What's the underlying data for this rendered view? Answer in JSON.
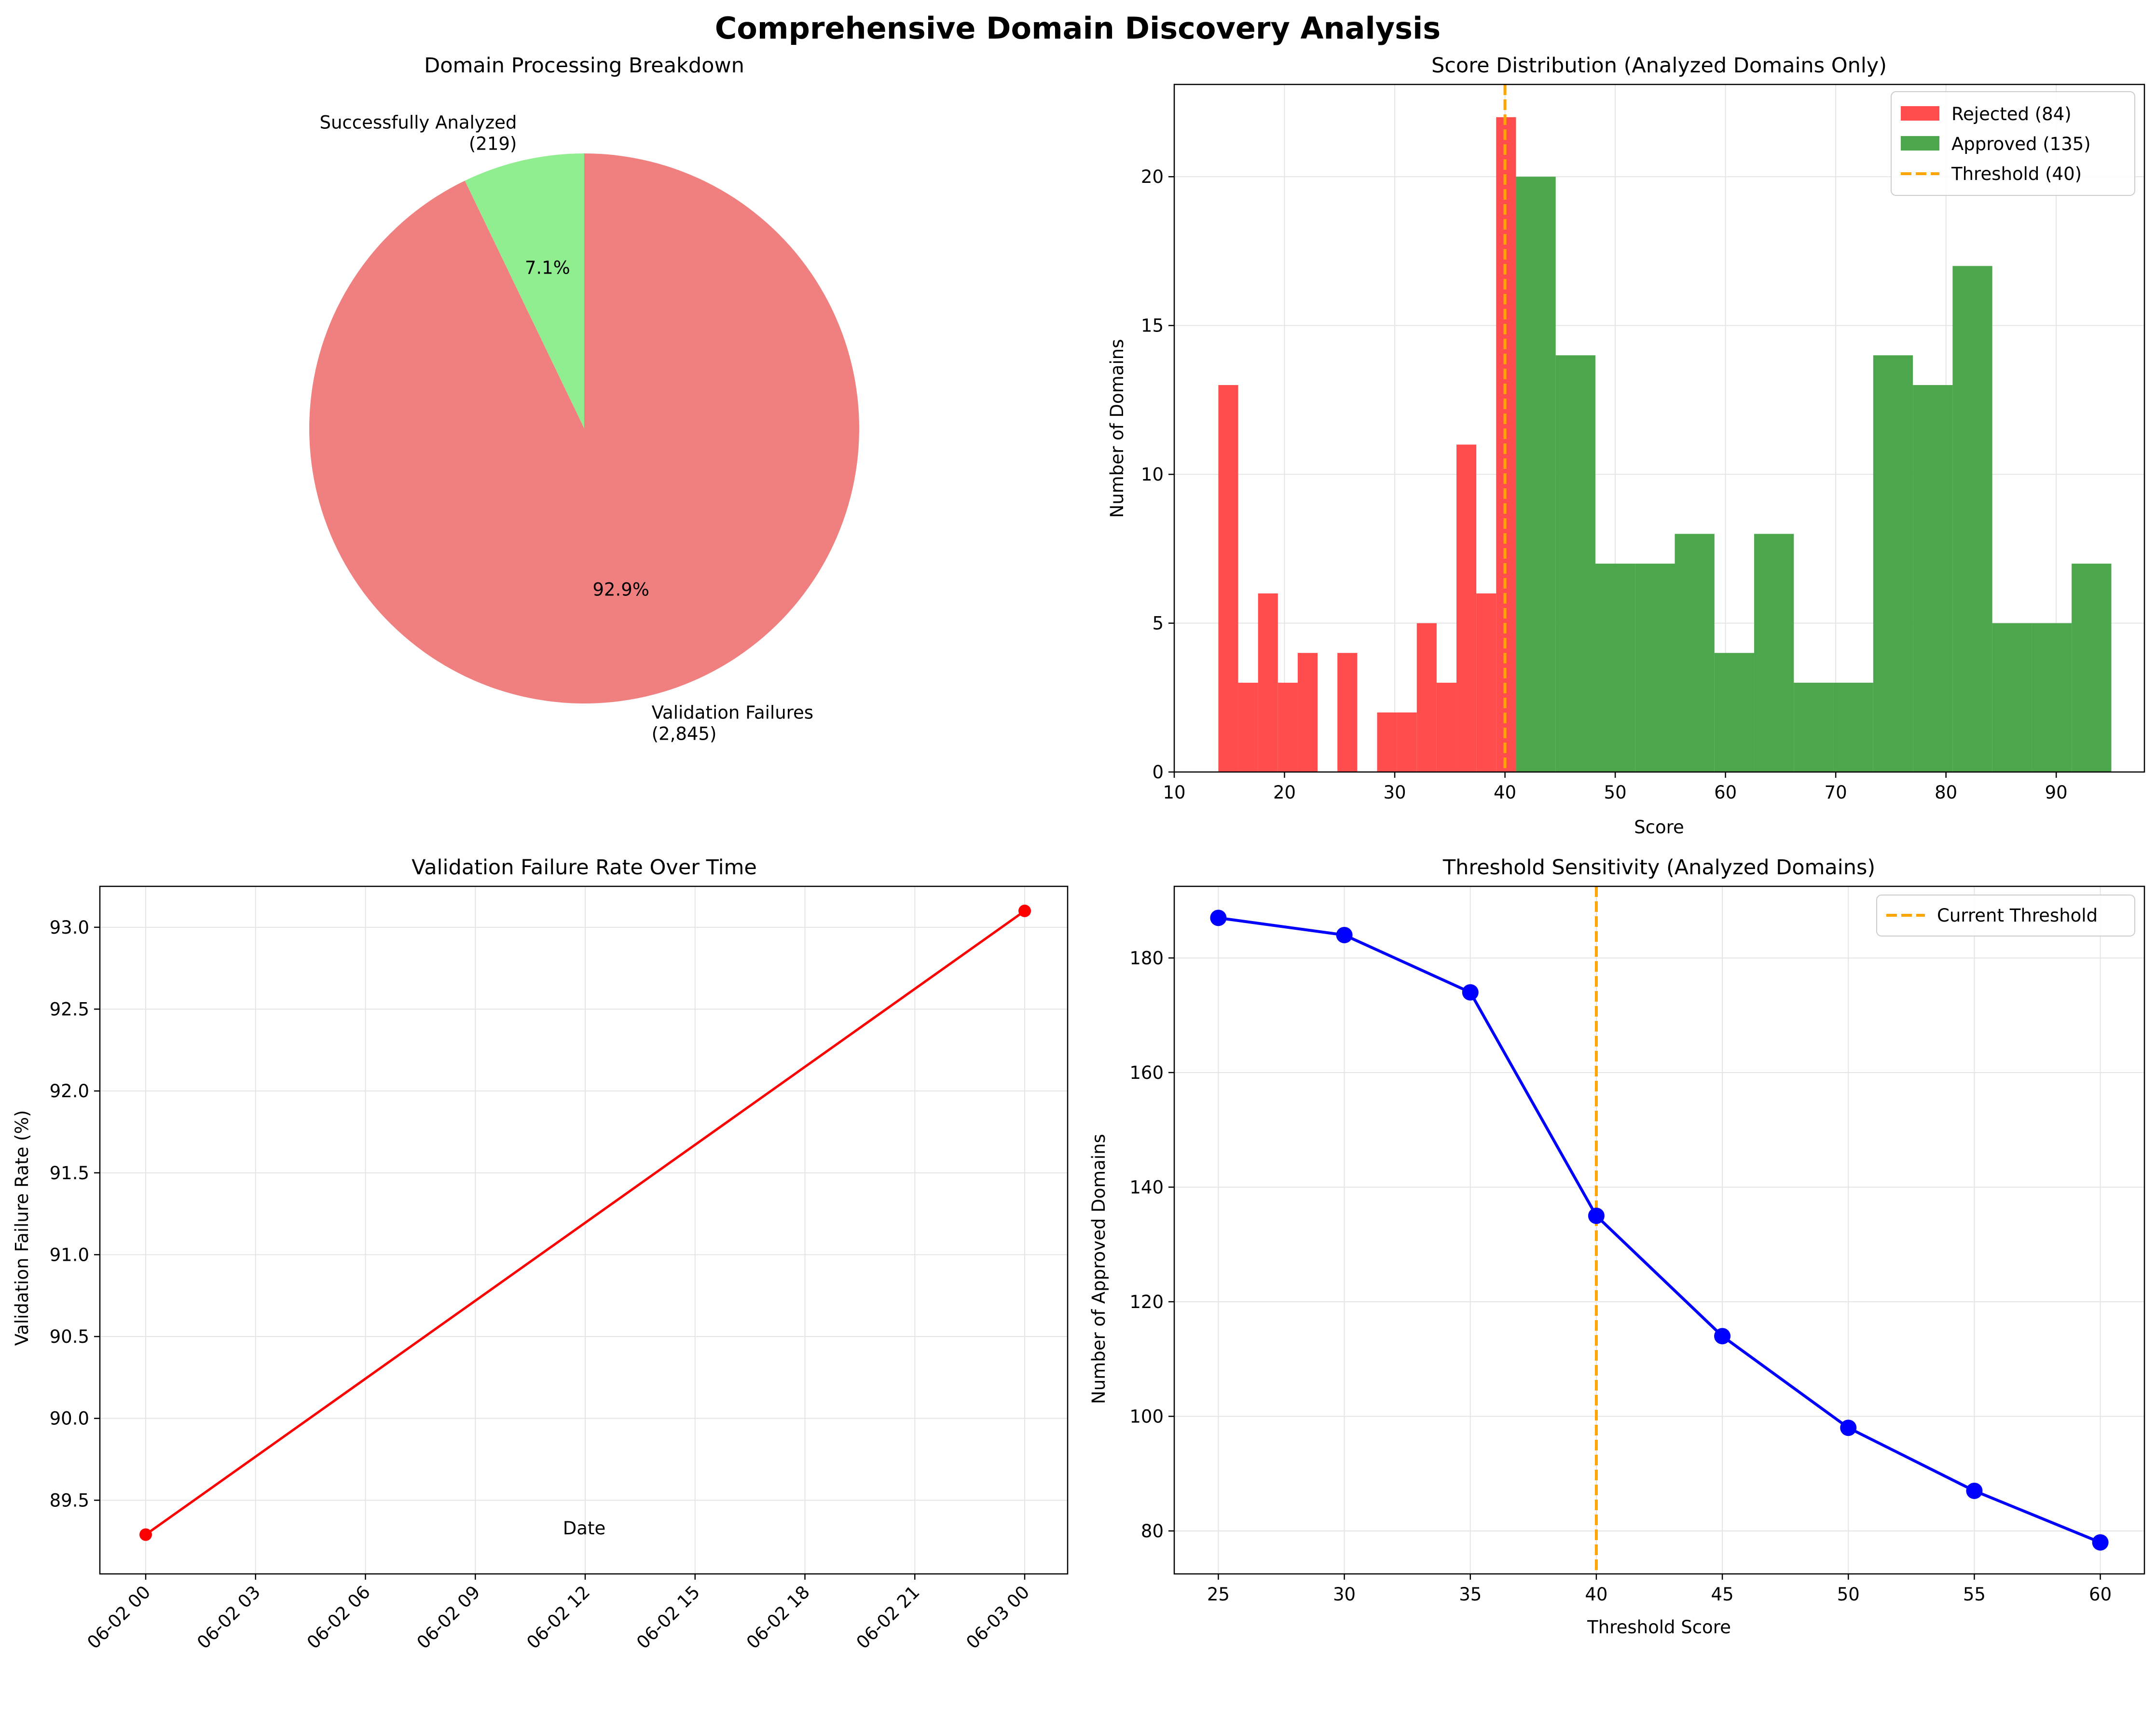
{
  "figure": {
    "title": "Comprehensive Domain Discovery Analysis"
  },
  "colors": {
    "failures": "#f08080",
    "analyzed": "#90ee90",
    "rejected": "#ff4d4d",
    "approved": "#4ca64c",
    "threshold": "#ffa500",
    "failure_line": "#ff0000",
    "sensitivity_line": "#0000ff",
    "grid": "#e5e5e5"
  },
  "chart_data": [
    {
      "type": "pie",
      "title": "Domain Processing Breakdown",
      "slices": [
        {
          "label": "Successfully Analyzed\n(219)",
          "value": 219,
          "pct": "7.1%",
          "color": "#90ee90"
        },
        {
          "label": "Validation Failures\n(2,845)",
          "value": 2845,
          "pct": "92.9%",
          "color": "#f08080"
        }
      ]
    },
    {
      "type": "bar",
      "title": "Score Distribution (Analyzed Domains Only)",
      "xlabel": "Score",
      "ylabel": "Number of Domains",
      "xlim": [
        10,
        98
      ],
      "ylim": [
        0,
        23.1
      ],
      "xticks": [
        10,
        20,
        30,
        40,
        50,
        60,
        70,
        80,
        90
      ],
      "yticks": [
        0,
        5,
        10,
        15,
        20
      ],
      "grid": true,
      "legend_position": "top-right",
      "legend": [
        "Rejected (84)",
        "Approved (135)",
        "Threshold (40)"
      ],
      "threshold": 40,
      "series": [
        {
          "name": "Rejected (84)",
          "bin_edges": [
            14,
            15.8,
            17.6,
            19.4,
            21.2,
            23.0,
            24.8,
            26.6,
            28.4,
            30.2,
            32.0,
            33.8,
            35.6,
            37.4,
            39.2
          ],
          "values": [
            13,
            3,
            6,
            3,
            4,
            0,
            4,
            0,
            2,
            2,
            5,
            3,
            11,
            6,
            22
          ]
        },
        {
          "name": "Approved (135)",
          "bin_edges": [
            41,
            44.6,
            48.2,
            51.8,
            55.4,
            59.0,
            62.6,
            66.2,
            69.8,
            73.4,
            77.0,
            80.6,
            84.2,
            87.8,
            91.4,
            95.0
          ],
          "values": [
            20,
            14,
            7,
            7,
            8,
            4,
            8,
            3,
            3,
            14,
            13,
            17,
            5,
            5,
            7
          ]
        }
      ]
    },
    {
      "type": "line",
      "title": "Validation Failure Rate Over Time",
      "xlabel": "Date",
      "ylabel": "Validation Failure Rate (%)",
      "x": [
        "06-02 00",
        "06-03 00"
      ],
      "xticks": [
        "06-02 00",
        "06-02 03",
        "06-02 06",
        "06-02 09",
        "06-02 12",
        "06-02 15",
        "06-02 18",
        "06-02 21",
        "06-03 00"
      ],
      "ylim": [
        89.05,
        93.25
      ],
      "yticks": [
        89.5,
        90.0,
        90.5,
        91.0,
        91.5,
        92.0,
        92.5,
        93.0
      ],
      "y": [
        89.29,
        93.1
      ],
      "grid": true
    },
    {
      "type": "line",
      "title": "Threshold Sensitivity (Analyzed Domains)",
      "xlabel": "Threshold Score",
      "ylabel": "Number of Approved Domains",
      "xlim": [
        23.25,
        61.75
      ],
      "ylim": [
        72.5,
        192.5
      ],
      "xticks": [
        25,
        30,
        35,
        40,
        45,
        50,
        55,
        60
      ],
      "yticks": [
        80,
        100,
        120,
        140,
        160,
        180
      ],
      "x": [
        25,
        30,
        35,
        40,
        45,
        50,
        55,
        60
      ],
      "y": [
        187,
        184,
        174,
        135,
        114,
        98,
        87,
        78
      ],
      "threshold": 40,
      "legend": [
        "Current Threshold"
      ],
      "legend_position": "top-right",
      "grid": true
    }
  ]
}
